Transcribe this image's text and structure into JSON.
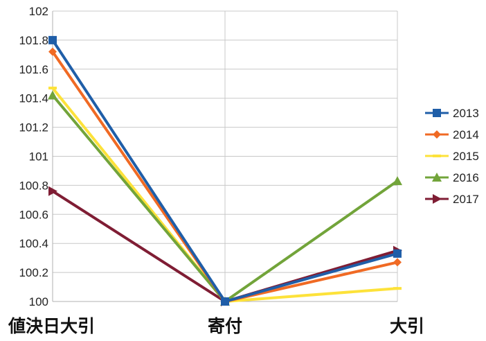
{
  "chart_data": {
    "type": "line",
    "title": "",
    "xlabel": "",
    "ylabel": "",
    "categories": [
      "値決日大引",
      "寄付",
      "大引"
    ],
    "ylim": [
      100,
      102
    ],
    "y_ticks": [
      {
        "value": 100,
        "label": "100"
      },
      {
        "value": 100.2,
        "label": "100.2"
      },
      {
        "value": 100.4,
        "label": "100.4"
      },
      {
        "value": 100.6,
        "label": "100.6"
      },
      {
        "value": 100.8,
        "label": "100.8"
      },
      {
        "value": 101,
        "label": "101"
      },
      {
        "value": 101.2,
        "label": "101.2"
      },
      {
        "value": 101.4,
        "label": "101.4"
      },
      {
        "value": 101.6,
        "label": "101.6"
      },
      {
        "value": 101.8,
        "label": "101.8"
      },
      {
        "value": 102,
        "label": "102"
      }
    ],
    "grid": true,
    "legend_position": "right",
    "series": [
      {
        "name": "2013",
        "values": [
          101.8,
          100,
          100.33
        ],
        "color": "#1f5ea8",
        "marker": "square"
      },
      {
        "name": "2014",
        "values": [
          101.72,
          100,
          100.27
        ],
        "color": "#f06a24",
        "marker": "diamond"
      },
      {
        "name": "2015",
        "values": [
          101.47,
          100,
          100.09
        ],
        "color": "#fde23a",
        "marker": "line"
      },
      {
        "name": "2016",
        "values": [
          101.42,
          100,
          100.83
        ],
        "color": "#72a43a",
        "marker": "triangle-up"
      },
      {
        "name": "2017",
        "values": [
          100.76,
          100,
          100.35
        ],
        "color": "#7f1d34",
        "marker": "triangle-right"
      }
    ]
  }
}
